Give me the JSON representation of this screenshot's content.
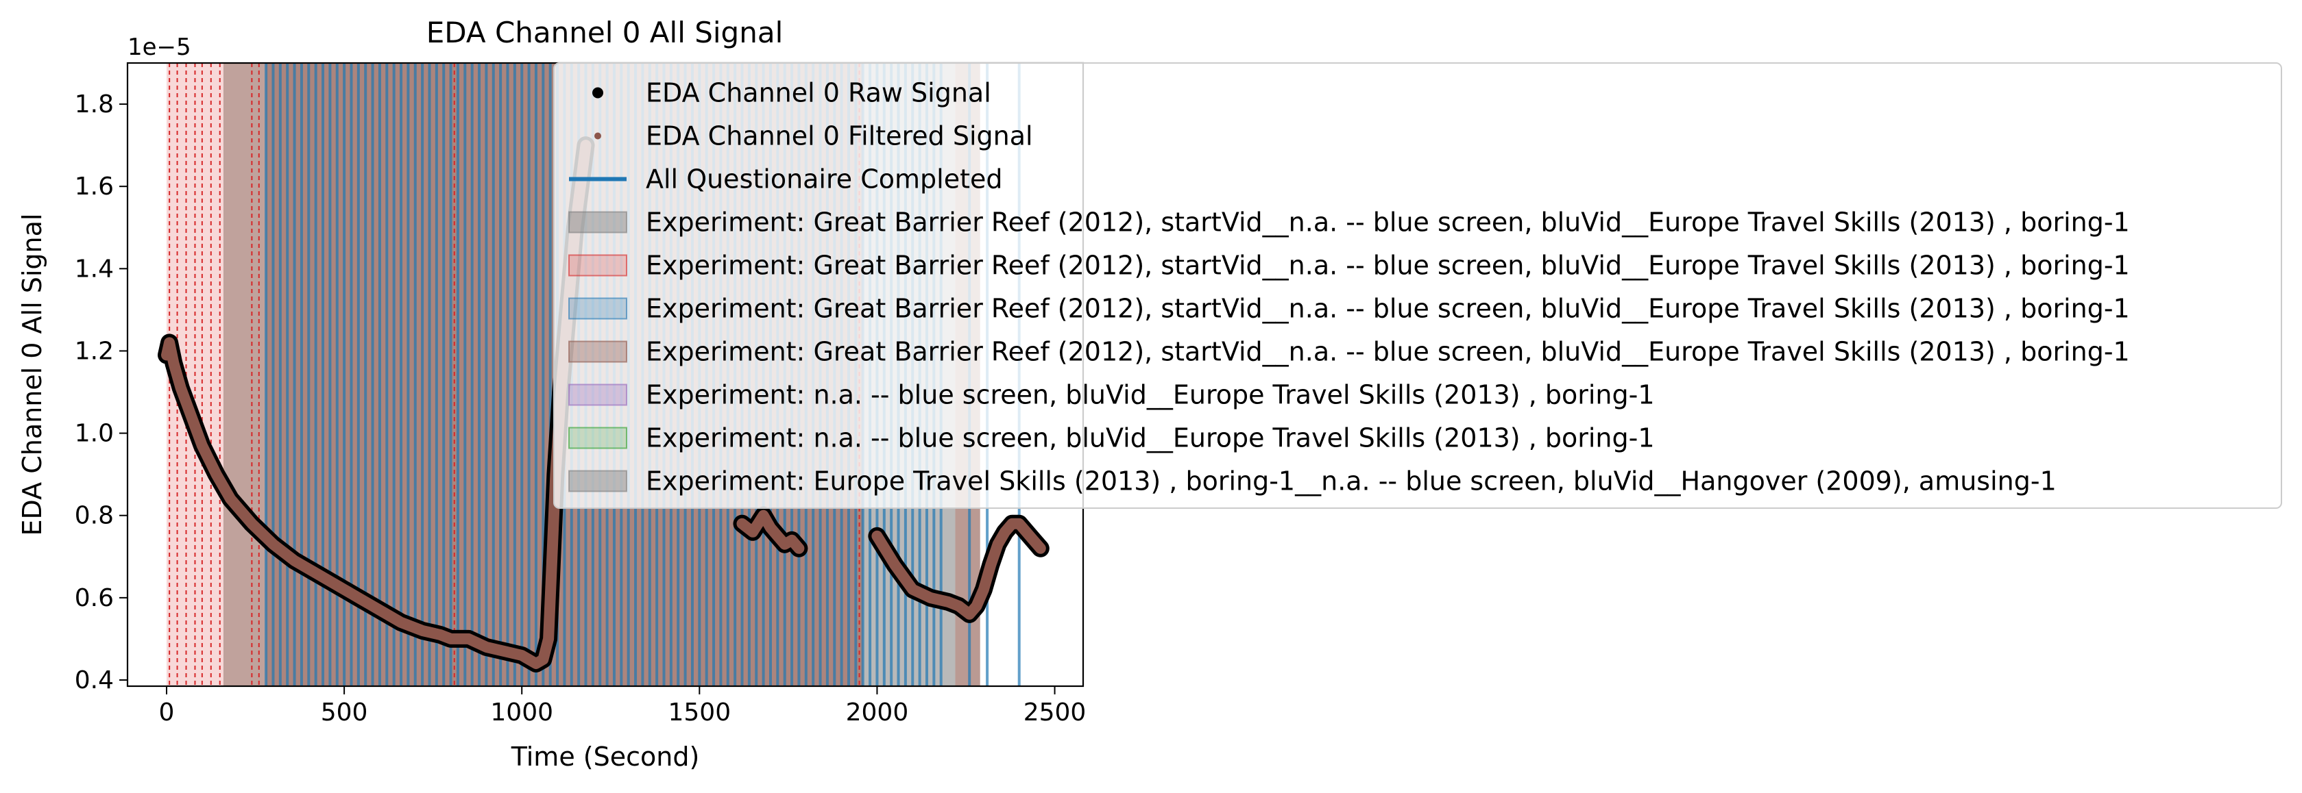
{
  "chart_data": {
    "type": "line",
    "title": "EDA Channel 0 All Signal",
    "xlabel": "Time (Second)",
    "ylabel": "EDA Channel 0 All Signal",
    "y_offset_label": "1e−5",
    "xlim": [
      -110,
      2580
    ],
    "ylim": [
      0.385,
      1.9
    ],
    "x_ticks": [
      0,
      500,
      1000,
      1500,
      2000,
      2500
    ],
    "y_ticks": [
      0.4,
      0.6,
      0.8,
      1.0,
      1.2,
      1.4,
      1.6,
      1.8
    ],
    "y_tick_labels": [
      "0.4",
      "0.6",
      "0.8",
      "1.0",
      "1.2",
      "1.4",
      "1.6",
      "1.8"
    ],
    "grid": false,
    "legend_position": "upper-right",
    "series": [
      {
        "name": "EDA Channel 0 Raw Signal",
        "color": "#000000",
        "marker": "dot",
        "x": [
          0,
          8,
          20,
          40,
          70,
          100,
          140,
          180,
          240,
          300,
          360,
          420,
          480,
          540,
          600,
          660,
          720,
          770,
          800,
          850,
          900,
          950,
          1000,
          1040,
          1060,
          1075,
          1085,
          1095,
          1110,
          1130,
          1150,
          1180,
          1620,
          1650,
          1680,
          1700,
          1720,
          1740,
          1760,
          1780,
          2000,
          2050,
          2100,
          2150,
          2200,
          2230,
          2260,
          2280,
          2300,
          2320,
          2340,
          2360,
          2380,
          2400,
          2420,
          2440,
          2460
        ],
        "y": [
          1.19,
          1.22,
          1.17,
          1.11,
          1.04,
          0.97,
          0.9,
          0.84,
          0.78,
          0.73,
          0.69,
          0.66,
          0.63,
          0.6,
          0.57,
          0.54,
          0.52,
          0.51,
          0.5,
          0.5,
          0.48,
          0.47,
          0.46,
          0.44,
          0.45,
          0.5,
          0.7,
          0.9,
          1.1,
          1.3,
          1.5,
          1.7,
          0.78,
          0.76,
          0.8,
          0.77,
          0.75,
          0.73,
          0.74,
          0.72,
          0.75,
          0.68,
          0.62,
          0.6,
          0.59,
          0.58,
          0.56,
          0.58,
          0.62,
          0.68,
          0.73,
          0.76,
          0.78,
          0.78,
          0.76,
          0.74,
          0.72
        ]
      },
      {
        "name": "EDA Channel 0 Filtered Signal",
        "color": "#8c564b",
        "marker": "dot"
      },
      {
        "name": "All Questionaire Completed",
        "color": "#1f77b4",
        "marker": "vline",
        "x": [
          280,
          300,
          320,
          340,
          360,
          380,
          400,
          420,
          440,
          460,
          480,
          500,
          520,
          540,
          560,
          580,
          600,
          620,
          640,
          660,
          680,
          700,
          720,
          740,
          760,
          780,
          800,
          820,
          840,
          860,
          880,
          900,
          920,
          940,
          960,
          980,
          1000,
          1020,
          1040,
          1060,
          1080,
          1100,
          1120,
          1140,
          1160,
          1180,
          1200,
          1220,
          1240,
          1260,
          1280,
          1300,
          1320,
          1340,
          1360,
          1380,
          1400,
          1420,
          1440,
          1460,
          1480,
          1500,
          1520,
          1540,
          1560,
          1580,
          1600,
          1620,
          1640,
          1660,
          1680,
          1700,
          1720,
          1740,
          1760,
          1780,
          1800,
          1820,
          1840,
          1860,
          1880,
          1900,
          1920,
          1940,
          1960,
          1980,
          2000,
          2020,
          2040,
          2060,
          2080,
          2100,
          2120,
          2140,
          2160,
          2180,
          2260,
          2310,
          2400
        ]
      }
    ],
    "spans": [
      {
        "name": "Experiment: Great Barrier Reef (2012), startVid__n.a. -- blue screen, bluVid__Europe Travel Skills (2013) , boring-1",
        "color": "#7f7f7f",
        "opacity": 0.45
      },
      {
        "name": "Experiment: Great Barrier Reef (2012), startVid__n.a. -- blue screen, bluVid__Europe Travel Skills (2013) , boring-1",
        "color": "#d62728",
        "opacity": 0.2
      },
      {
        "name": "Experiment: Great Barrier Reef (2012), startVid__n.a. -- blue screen, bluVid__Europe Travel Skills (2013) , boring-1",
        "color": "#1f77b4",
        "opacity": 0.25
      },
      {
        "name": "Experiment: Great Barrier Reef (2012), startVid__n.a. -- blue screen, bluVid__Europe Travel Skills (2013) , boring-1",
        "color": "#8c564b",
        "opacity": 0.35
      },
      {
        "name": "Experiment: n.a. -- blue screen, bluVid__Europe Travel Skills (2013) , boring-1",
        "color": "#9467bd",
        "opacity": 0.3
      },
      {
        "name": "Experiment: n.a. -- blue screen, bluVid__Europe Travel Skills (2013) , boring-1",
        "color": "#2ca02c",
        "opacity": 0.2
      },
      {
        "name": "Experiment: Europe Travel Skills (2013) , boring-1__n.a. -- blue screen, bluVid__Hangover (2009), amusing-1",
        "color": "#7f7f7f",
        "opacity": 0.45
      }
    ],
    "span_regions": [
      {
        "x0": 0,
        "x1": 160,
        "color": "#d62728",
        "opacity": 0.18
      },
      {
        "x0": 160,
        "x1": 280,
        "color": "#8c564b",
        "opacity": 0.55
      },
      {
        "x0": 280,
        "x1": 1960,
        "color": "#8c564b",
        "opacity": 0.72
      },
      {
        "x0": 1960,
        "x1": 2220,
        "color": "#7f7f7f",
        "opacity": 0.55
      },
      {
        "x0": 2220,
        "x1": 2290,
        "color": "#8c564b",
        "opacity": 0.6
      }
    ],
    "red_dashed_lines": [
      8,
      30,
      55,
      80,
      100,
      125,
      150,
      240,
      260,
      810,
      1950
    ]
  }
}
